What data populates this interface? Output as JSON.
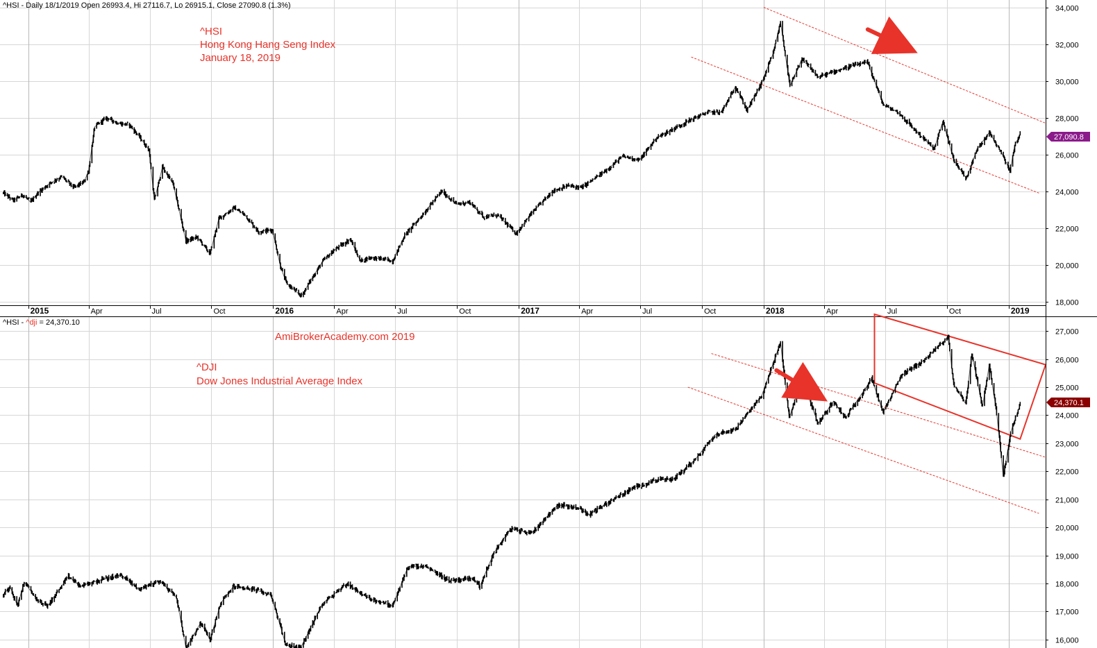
{
  "colors": {
    "annotation": "#e8332a",
    "price_line": "#000000",
    "hsi_badge": "#8b1a8b",
    "dji_badge": "#8b0000",
    "grid": "#d6d6d6"
  },
  "panels": {
    "top": {
      "info_line": "^HSI - Daily 18/1/2019 Open 26993.4, Hi 27116.7, Lo 26915.1, Close 27090.8 (1.3%)",
      "annotation_lines": [
        "^HSI",
        "Hong Kong Hang Seng Index",
        "January 18, 2019"
      ],
      "last_value_badge": "27,090.8"
    },
    "bottom": {
      "info_prefix": "^HSI - ",
      "info_highlight": "^dji",
      "info_suffix": " = 24,370.10",
      "watermark": "AmiBrokerAcademy.com  2019",
      "annotation_lines": [
        "^DJI",
        "Dow Jones Industrial Average Index"
      ],
      "last_value_badge": "24,370.1"
    }
  },
  "x_axis": {
    "labels": [
      {
        "text": "2015",
        "bold": true,
        "date": "2015-01"
      },
      {
        "text": "Apr",
        "bold": false,
        "date": "2015-04"
      },
      {
        "text": "Jul",
        "bold": false,
        "date": "2015-07"
      },
      {
        "text": "Oct",
        "bold": false,
        "date": "2015-10"
      },
      {
        "text": "2016",
        "bold": true,
        "date": "2016-01"
      },
      {
        "text": "Apr",
        "bold": false,
        "date": "2016-04"
      },
      {
        "text": "Jul",
        "bold": false,
        "date": "2016-07"
      },
      {
        "text": "Oct",
        "bold": false,
        "date": "2016-10"
      },
      {
        "text": "2017",
        "bold": true,
        "date": "2017-01"
      },
      {
        "text": "Apr",
        "bold": false,
        "date": "2017-04"
      },
      {
        "text": "Jul",
        "bold": false,
        "date": "2017-07"
      },
      {
        "text": "Oct",
        "bold": false,
        "date": "2017-10"
      },
      {
        "text": "2018",
        "bold": true,
        "date": "2018-01"
      },
      {
        "text": "Apr",
        "bold": false,
        "date": "2018-04"
      },
      {
        "text": "Jul",
        "bold": false,
        "date": "2018-07"
      },
      {
        "text": "Oct",
        "bold": false,
        "date": "2018-10"
      },
      {
        "text": "2019",
        "bold": true,
        "date": "2019-01"
      }
    ]
  },
  "chart_data": [
    {
      "type": "line",
      "series_name": "^HSI",
      "style": "daily OHLC bars",
      "x_unit": "date (YYYY-MM-DD)",
      "x_range": [
        "2014-11-20",
        "2019-02-25"
      ],
      "y_range": [
        17800,
        34400
      ],
      "y_ticks": [
        18000,
        20000,
        22000,
        24000,
        26000,
        28000,
        30000,
        32000,
        34000
      ],
      "y_tick_labels": [
        "18,000",
        "20,000",
        "22,000",
        "24,000",
        "26,000",
        "28,000",
        "30,000",
        "32,000",
        "34,000"
      ],
      "points": [
        [
          "2014-11-25",
          23900
        ],
        [
          "2014-12-10",
          23500
        ],
        [
          "2014-12-24",
          23800
        ],
        [
          "2015-01-05",
          23400
        ],
        [
          "2015-01-15",
          23900
        ],
        [
          "2015-02-01",
          24400
        ],
        [
          "2015-02-20",
          24800
        ],
        [
          "2015-03-10",
          24200
        ],
        [
          "2015-03-25",
          24500
        ],
        [
          "2015-04-01",
          25100
        ],
        [
          "2015-04-10",
          27500
        ],
        [
          "2015-04-28",
          28000
        ],
        [
          "2015-05-15",
          27700
        ],
        [
          "2015-06-01",
          27600
        ],
        [
          "2015-06-15",
          27000
        ],
        [
          "2015-06-30",
          26250
        ],
        [
          "2015-07-08",
          23500
        ],
        [
          "2015-07-20",
          25300
        ],
        [
          "2015-08-05",
          24400
        ],
        [
          "2015-08-24",
          21300
        ],
        [
          "2015-09-10",
          21500
        ],
        [
          "2015-09-29",
          20600
        ],
        [
          "2015-10-12",
          22500
        ],
        [
          "2015-11-04",
          23100
        ],
        [
          "2015-11-20",
          22700
        ],
        [
          "2015-12-10",
          21800
        ],
        [
          "2015-12-31",
          21900
        ],
        [
          "2016-01-12",
          19900
        ],
        [
          "2016-01-21",
          19000
        ],
        [
          "2016-02-12",
          18300
        ],
        [
          "2016-03-01",
          19400
        ],
        [
          "2016-03-15",
          20200
        ],
        [
          "2016-04-01",
          20800
        ],
        [
          "2016-04-25",
          21400
        ],
        [
          "2016-05-10",
          20200
        ],
        [
          "2016-05-25",
          20400
        ],
        [
          "2016-06-15",
          20300
        ],
        [
          "2016-06-27",
          20200
        ],
        [
          "2016-07-15",
          21600
        ],
        [
          "2016-08-10",
          22700
        ],
        [
          "2016-09-08",
          24000
        ],
        [
          "2016-09-30",
          23300
        ],
        [
          "2016-10-20",
          23400
        ],
        [
          "2016-11-10",
          22600
        ],
        [
          "2016-12-01",
          22700
        ],
        [
          "2016-12-28",
          21700
        ],
        [
          "2017-01-20",
          22800
        ],
        [
          "2017-02-20",
          24000
        ],
        [
          "2017-03-15",
          24300
        ],
        [
          "2017-04-05",
          24200
        ],
        [
          "2017-05-10",
          25100
        ],
        [
          "2017-06-05",
          25900
        ],
        [
          "2017-06-30",
          25700
        ],
        [
          "2017-07-25",
          26900
        ],
        [
          "2017-08-20",
          27400
        ],
        [
          "2017-09-15",
          27900
        ],
        [
          "2017-10-10",
          28300
        ],
        [
          "2017-10-30",
          28300
        ],
        [
          "2017-11-20",
          29700
        ],
        [
          "2017-12-07",
          28400
        ],
        [
          "2017-12-29",
          29900
        ],
        [
          "2018-01-15",
          31500
        ],
        [
          "2018-01-26",
          33200
        ],
        [
          "2018-02-09",
          29700
        ],
        [
          "2018-02-27",
          31200
        ],
        [
          "2018-03-23",
          30200
        ],
        [
          "2018-04-15",
          30500
        ],
        [
          "2018-05-10",
          30800
        ],
        [
          "2018-06-05",
          31000
        ],
        [
          "2018-06-28",
          28700
        ],
        [
          "2018-07-20",
          28300
        ],
        [
          "2018-08-15",
          27300
        ],
        [
          "2018-09-12",
          26300
        ],
        [
          "2018-09-25",
          27800
        ],
        [
          "2018-10-11",
          25700
        ],
        [
          "2018-10-30",
          24700
        ],
        [
          "2018-11-15",
          26300
        ],
        [
          "2018-12-03",
          27200
        ],
        [
          "2018-12-20",
          26200
        ],
        [
          "2019-01-03",
          25100
        ],
        [
          "2019-01-10",
          26500
        ],
        [
          "2019-01-18",
          27090.8
        ]
      ],
      "trend_lines": [
        {
          "from": [
            "2018-01-01",
            34000
          ],
          "to": [
            "2019-02-25",
            27700
          ]
        },
        {
          "from": [
            "2017-09-15",
            31300
          ],
          "to": [
            "2019-02-15",
            23900
          ]
        }
      ],
      "annotation_arrow": {
        "from": [
          "2018-06-05",
          32800
        ],
        "to": [
          "2018-07-27",
          31900
        ]
      }
    },
    {
      "type": "line",
      "series_name": "^dji",
      "style": "daily OHLC bars",
      "x_unit": "date (YYYY-MM-DD)",
      "x_range": [
        "2014-11-20",
        "2019-02-25"
      ],
      "y_range": [
        15700,
        27500
      ],
      "y_ticks": [
        16000,
        17000,
        18000,
        19000,
        20000,
        21000,
        22000,
        23000,
        24000,
        25000,
        26000,
        27000
      ],
      "y_tick_labels": [
        "16,000",
        "17,000",
        "18,000",
        "19,000",
        "20,000",
        "21,000",
        "22,000",
        "23,000",
        "24,000",
        "25,000",
        "26,000",
        "27,000"
      ],
      "points": [
        [
          "2014-11-25",
          17600
        ],
        [
          "2014-12-05",
          17900
        ],
        [
          "2014-12-16",
          17200
        ],
        [
          "2014-12-26",
          18050
        ],
        [
          "2015-01-15",
          17400
        ],
        [
          "2015-01-30",
          17200
        ],
        [
          "2015-03-02",
          18250
        ],
        [
          "2015-03-20",
          17900
        ],
        [
          "2015-04-15",
          18100
        ],
        [
          "2015-05-20",
          18300
        ],
        [
          "2015-06-15",
          17800
        ],
        [
          "2015-07-16",
          18100
        ],
        [
          "2015-08-10",
          17500
        ],
        [
          "2015-08-24",
          15700
        ],
        [
          "2015-09-15",
          16600
        ],
        [
          "2015-09-29",
          16000
        ],
        [
          "2015-10-15",
          17300
        ],
        [
          "2015-11-03",
          17900
        ],
        [
          "2015-12-01",
          17800
        ],
        [
          "2015-12-29",
          17600
        ],
        [
          "2016-01-20",
          15800
        ],
        [
          "2016-02-11",
          15700
        ],
        [
          "2016-03-15",
          17300
        ],
        [
          "2016-04-20",
          18000
        ],
        [
          "2016-05-20",
          17500
        ],
        [
          "2016-06-27",
          17200
        ],
        [
          "2016-07-20",
          18600
        ],
        [
          "2016-08-15",
          18600
        ],
        [
          "2016-09-20",
          18100
        ],
        [
          "2016-10-25",
          18200
        ],
        [
          "2016-11-04",
          17900
        ],
        [
          "2016-11-25",
          19100
        ],
        [
          "2016-12-20",
          19950
        ],
        [
          "2017-01-20",
          19800
        ],
        [
          "2017-02-28",
          20800
        ],
        [
          "2017-03-31",
          20700
        ],
        [
          "2017-04-15",
          20450
        ],
        [
          "2017-05-15",
          20900
        ],
        [
          "2017-06-20",
          21400
        ],
        [
          "2017-07-25",
          21700
        ],
        [
          "2017-08-18",
          21700
        ],
        [
          "2017-09-20",
          22400
        ],
        [
          "2017-10-20",
          23300
        ],
        [
          "2017-11-20",
          23500
        ],
        [
          "2017-12-29",
          24700
        ],
        [
          "2018-01-26",
          26600
        ],
        [
          "2018-02-08",
          23900
        ],
        [
          "2018-02-27",
          25300
        ],
        [
          "2018-03-23",
          23700
        ],
        [
          "2018-04-15",
          24500
        ],
        [
          "2018-05-03",
          23900
        ],
        [
          "2018-06-11",
          25300
        ],
        [
          "2018-06-28",
          24100
        ],
        [
          "2018-07-25",
          25400
        ],
        [
          "2018-08-30",
          26000
        ],
        [
          "2018-10-03",
          26800
        ],
        [
          "2018-10-11",
          25100
        ],
        [
          "2018-10-29",
          24400
        ],
        [
          "2018-11-07",
          26200
        ],
        [
          "2018-11-23",
          24300
        ],
        [
          "2018-12-03",
          25800
        ],
        [
          "2018-12-14",
          24100
        ],
        [
          "2018-12-24",
          21800
        ],
        [
          "2019-01-04",
          23400
        ],
        [
          "2019-01-18",
          24370.1
        ]
      ],
      "trend_lines": [
        {
          "from": [
            "2017-10-15",
            26200
          ],
          "to": [
            "2019-02-25",
            22500
          ]
        },
        {
          "from": [
            "2017-09-10",
            25000
          ],
          "to": [
            "2019-02-15",
            20500
          ]
        }
      ],
      "annotation_box": {
        "corners": [
          [
            "2018-06-15",
            27600
          ],
          [
            "2019-02-25",
            25800
          ],
          [
            "2019-01-18",
            23150
          ],
          [
            "2018-06-15",
            25150
          ]
        ]
      },
      "annotation_arrow": {
        "from": [
          "2018-01-20",
          25600
        ],
        "to": [
          "2018-03-16",
          24800
        ]
      }
    }
  ]
}
